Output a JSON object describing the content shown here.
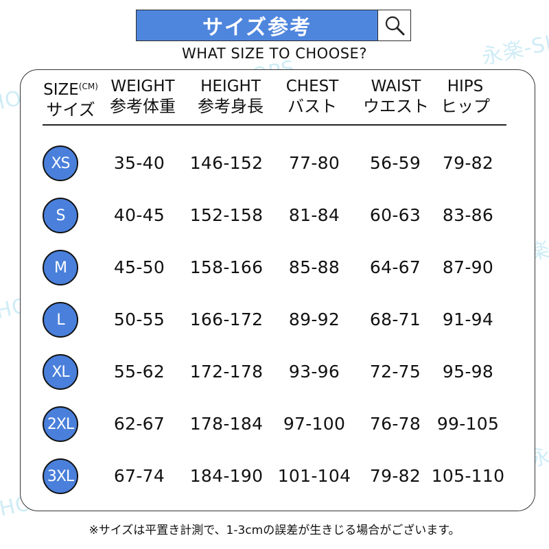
{
  "header": {
    "title": "サイズ参考",
    "subtitle": "WHAT SIZE TO CHOOSE?",
    "search_icon": "search-icon"
  },
  "table": {
    "columns": [
      {
        "en": "SIZE",
        "unit": "(CM)",
        "jp": "サイズ"
      },
      {
        "en": "WEIGHT",
        "jp": "参考体重"
      },
      {
        "en": "HEIGHT",
        "jp": "参考身長"
      },
      {
        "en": "CHEST",
        "jp": "バスト"
      },
      {
        "en": "WAIST",
        "jp": "ウエスト"
      },
      {
        "en": "HIPS",
        "jp": "ヒップ"
      }
    ],
    "rows": [
      {
        "size": "XS",
        "weight": "35-40",
        "height": "146-152",
        "chest": "77-80",
        "waist": "56-59",
        "hips": "79-82"
      },
      {
        "size": "S",
        "weight": "40-45",
        "height": "152-158",
        "chest": "81-84",
        "waist": "60-63",
        "hips": "83-86"
      },
      {
        "size": "M",
        "weight": "45-50",
        "height": "158-166",
        "chest": "85-88",
        "waist": "64-67",
        "hips": "87-90"
      },
      {
        "size": "L",
        "weight": "50-55",
        "height": "166-172",
        "chest": "89-92",
        "waist": "68-71",
        "hips": "91-94"
      },
      {
        "size": "XL",
        "weight": "55-62",
        "height": "172-178",
        "chest": "93-96",
        "waist": "72-75",
        "hips": "95-98"
      },
      {
        "size": "2XL",
        "weight": "62-67",
        "height": "178-184",
        "chest": "97-100",
        "waist": "76-78",
        "hips": "99-105"
      },
      {
        "size": "3XL",
        "weight": "67-74",
        "height": "184-190",
        "chest": "101-104",
        "waist": "79-82",
        "hips": "105-110"
      }
    ]
  },
  "note": "※サイズは平置き計測で、1-3cmの誤差が生きじる場合がございます。",
  "watermark": "永楽-SHOPS",
  "colors": {
    "accent": "#4f86dd",
    "badge": "#4a80db",
    "watermark": "#bfe6f3"
  }
}
